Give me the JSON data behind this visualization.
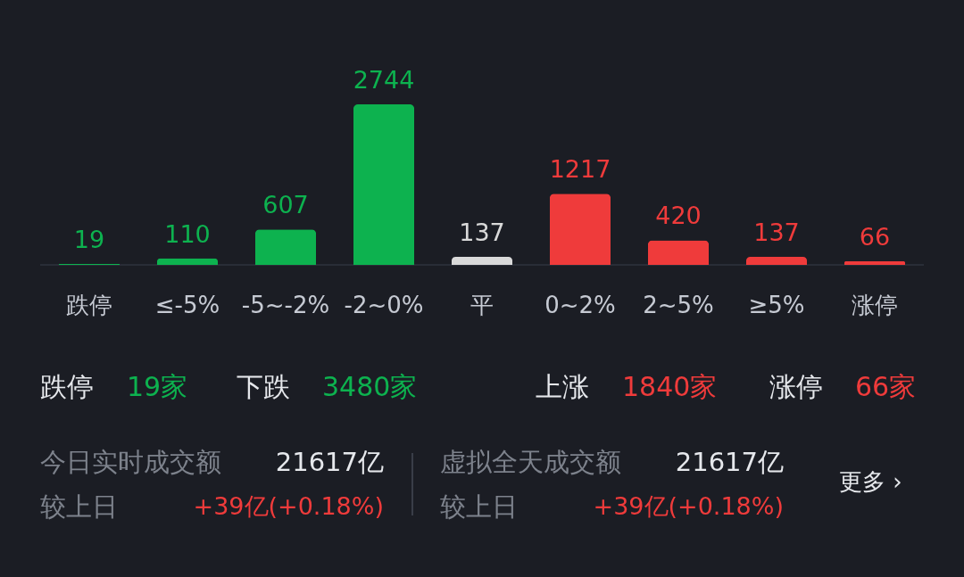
{
  "chart_data": {
    "type": "bar",
    "categories": [
      "跌停",
      "≤-5%",
      "-5~-2%",
      "-2~0%",
      "平",
      "0~2%",
      "2~5%",
      "≥5%",
      "涨停"
    ],
    "values": [
      19,
      110,
      607,
      2744,
      137,
      1217,
      420,
      137,
      66
    ],
    "colors": [
      "#0db24f",
      "#0db24f",
      "#0db24f",
      "#0db24f",
      "#d9d9d9",
      "#ef3b3b",
      "#ef3b3b",
      "#ef3b3b",
      "#ef3b3b"
    ],
    "data_labels": true,
    "annotations": [
      "跌停",
      "19家",
      "下跌",
      "3480家",
      "上涨",
      "1840家",
      "涨停",
      "66家",
      "今日实时成交额",
      "21617亿",
      "较上日",
      "+39亿(+0.18%)",
      "虚拟全天成交额",
      "21617亿",
      "较上日",
      "+39亿(+0.18%)",
      "更多 ›"
    ]
  }
}
